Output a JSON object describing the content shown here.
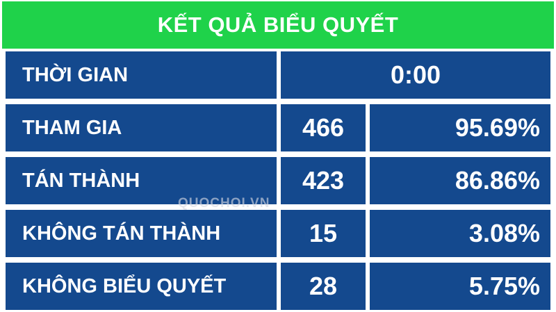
{
  "header": {
    "title": "KẾT QUẢ BIỂU QUYẾT"
  },
  "table": {
    "time_row": {
      "label": "THỜI GIAN",
      "value": "0:00"
    },
    "result_rows": [
      {
        "label": "THAM GIA",
        "count": "466",
        "percent": "95.69%"
      },
      {
        "label": "TÁN THÀNH",
        "count": "423",
        "percent": "86.86%"
      },
      {
        "label": "KHÔNG TÁN THÀNH",
        "count": "15",
        "percent": "3.08%"
      },
      {
        "label": "KHÔNG BIỂU QUYẾT",
        "count": "28",
        "percent": "5.75%"
      }
    ]
  },
  "watermark": {
    "text": "QUOCHOI.VN"
  },
  "colors": {
    "header_green": "#1fd24a",
    "cell_blue": "#14498e",
    "gutter_white": "#ffffff",
    "text_white": "#ffffff"
  }
}
